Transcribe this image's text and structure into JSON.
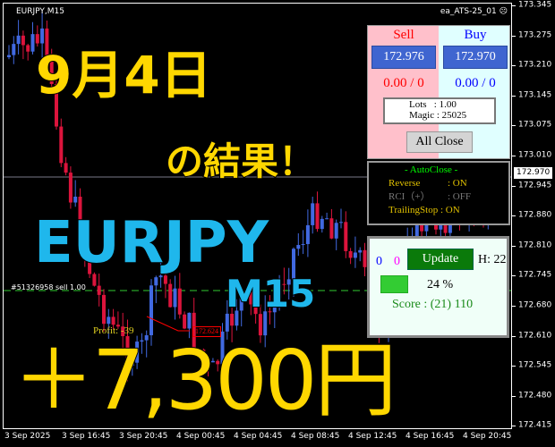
{
  "chart": {
    "symbol": "EURJPY,M15",
    "ea_name": "ea_ATS-25_01",
    "ea_status_icon": "frown-face-icon",
    "current_price": "172.970",
    "order_label": "#51326958 sell 1.00",
    "price_label": "172.624",
    "profit_label": "Profit: -39",
    "price_axis": [
      "173.345",
      "173.275",
      "173.210",
      "173.145",
      "173.075",
      "173.010",
      "172.945",
      "172.880",
      "172.810",
      "172.745",
      "172.680",
      "172.610",
      "172.545",
      "172.480",
      "172.415"
    ],
    "time_axis": [
      "3 Sep 2025",
      "3 Sep 16:45",
      "3 Sep 20:45",
      "4 Sep 00:45",
      "4 Sep 04:45",
      "4 Sep 08:45",
      "4 Sep 12:45",
      "4 Sep 16:45",
      "4 Sep 20:45"
    ],
    "colors": {
      "bull": "#4169e1",
      "bear": "#dc143c",
      "order_line": "#32cd32"
    }
  },
  "overlay": {
    "date": "9月4日",
    "result": "の結果！",
    "pair": "EURJPY",
    "timeframe": "M15",
    "amount": "＋7,300円"
  },
  "trade_panel": {
    "sell_title": "Sell",
    "buy_title": "Buy",
    "sell_price": "172.976",
    "buy_price": "172.970",
    "sell_pl": "0.00 / 0",
    "buy_pl": "0.00 / 0",
    "lots": "Lots   : 1.00",
    "magic": "Magic : 25025",
    "all_close": "All Close"
  },
  "autoclose_panel": {
    "title": "- AutoClose -",
    "rows": [
      {
        "label": "Reverse",
        "value": ": ON"
      },
      {
        "label": "RCI（+）",
        "value": ": OFF"
      },
      {
        "label": "TrailingStop",
        "value": ": ON"
      }
    ]
  },
  "status_panel": {
    "count_blue": "0",
    "count_magenta": "0",
    "update": "Update",
    "h": "H: 22",
    "progress_percent": 24,
    "progress_label": "24 %",
    "score": "Score : (21) 110"
  }
}
